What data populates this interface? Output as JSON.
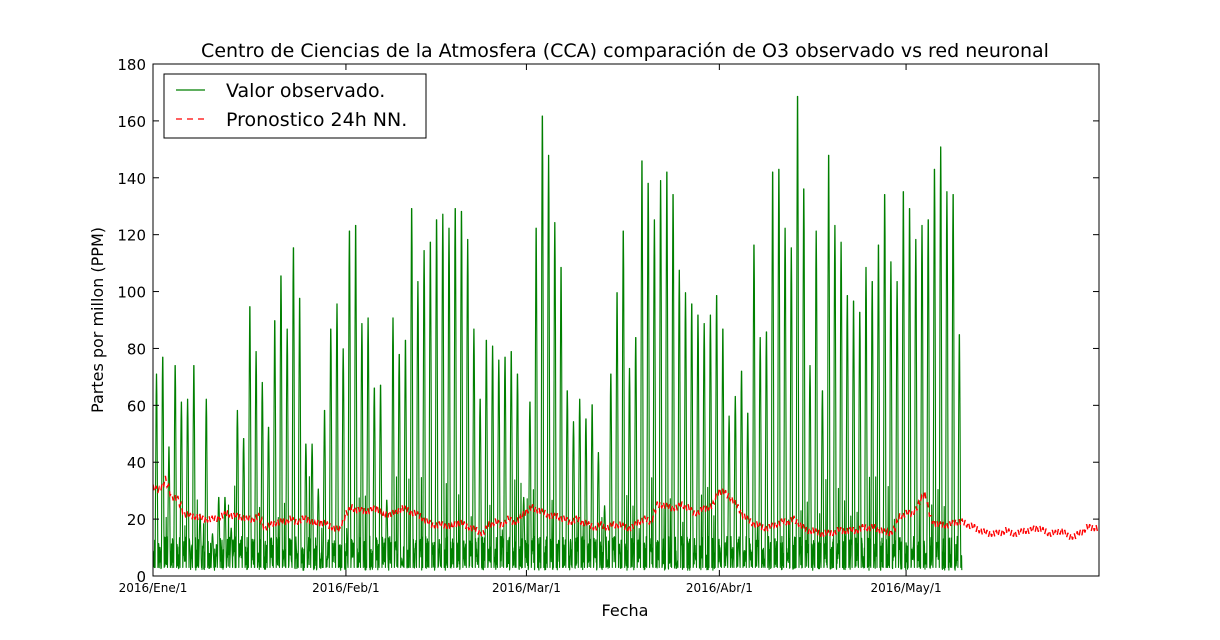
{
  "chart_data": {
    "type": "line",
    "title": "Centro de Ciencias de la Atmosfera (CCA) comparación de O3 observado vs red neuronal",
    "xlabel": "Fecha",
    "ylabel": "Partes por millon (PPM)",
    "ylim": [
      0,
      180
    ],
    "yticks": [
      0,
      20,
      40,
      60,
      80,
      100,
      120,
      140,
      160,
      180
    ],
    "xlim": [
      0,
      152
    ],
    "xticks": [
      {
        "label": "2016/Ene/1",
        "day": 0
      },
      {
        "label": "2016/Feb/1",
        "day": 31
      },
      {
        "label": "2016/Mar/1",
        "day": 60
      },
      {
        "label": "2016/Abr/1",
        "day": 91
      },
      {
        "label": "2016/May/1",
        "day": 121
      }
    ],
    "x_unit": "days since 2016/Ene/1",
    "legend_position": "top-left",
    "grid": false,
    "series": [
      {
        "name": "Valor observado.",
        "color": "#007f00",
        "style": "solid",
        "sampling": "daily peak values; hourly diurnal cycle with nightly minima near 2",
        "daily_peaks": [
          72,
          78,
          46,
          75,
          62,
          63,
          75,
          22,
          63,
          15,
          28,
          28,
          17,
          59,
          49,
          96,
          80,
          69,
          53,
          91,
          107,
          88,
          117,
          99,
          47,
          47,
          31,
          59,
          88,
          97,
          81,
          123,
          125,
          90,
          92,
          67,
          68,
          27,
          92,
          79,
          84,
          131,
          105,
          116,
          119,
          127,
          129,
          124,
          131,
          130,
          120,
          88,
          63,
          84,
          82,
          77,
          78,
          80,
          72,
          28,
          62,
          124,
          164,
          150,
          126,
          110,
          66,
          55,
          63,
          56,
          61,
          44,
          25,
          72,
          101,
          123,
          74,
          85,
          148,
          140,
          127,
          141,
          144,
          136,
          109,
          101,
          97,
          93,
          90,
          93,
          100,
          88,
          57,
          64,
          73,
          58,
          118,
          85,
          87,
          144,
          145,
          124,
          117,
          171,
          138,
          75,
          123,
          66,
          150,
          125,
          119,
          100,
          98,
          94,
          110,
          105,
          118,
          136,
          112,
          105,
          137,
          131,
          120,
          125,
          127,
          145,
          153,
          137,
          136,
          86
        ]
      },
      {
        "name": "Pronostico 24h NN.",
        "color": "#ff0000",
        "style": "dashed",
        "sampling": "daily values",
        "values": [
          31,
          30,
          34,
          28,
          27,
          22,
          21,
          21,
          20,
          20,
          20,
          21,
          22,
          21,
          21,
          20,
          20,
          21,
          17,
          18,
          19,
          19,
          20,
          19,
          20,
          20,
          18,
          19,
          18,
          17,
          16,
          22,
          24,
          23,
          23,
          23,
          24,
          21,
          22,
          22,
          24,
          23,
          22,
          21,
          19,
          18,
          18,
          18,
          17,
          19,
          18,
          17,
          16,
          15,
          18,
          19,
          18,
          20,
          19,
          20,
          23,
          24,
          23,
          22,
          21,
          21,
          20,
          19,
          20,
          19,
          18,
          17,
          18,
          17,
          18,
          18,
          17,
          17,
          19,
          20,
          19,
          25,
          25,
          24,
          24,
          25,
          24,
          22,
          23,
          24,
          25,
          30,
          29,
          27,
          24,
          21,
          19,
          18,
          17,
          17,
          18,
          19,
          19,
          20,
          18,
          16,
          16,
          15,
          15,
          15,
          16,
          16,
          16,
          16,
          17,
          17,
          17,
          16,
          15,
          16,
          21,
          22,
          22,
          25,
          29,
          20,
          18,
          18,
          18,
          19,
          19,
          18,
          17,
          16,
          15,
          15,
          15,
          16,
          15,
          15,
          16,
          16,
          17,
          16,
          15,
          15,
          16,
          14,
          14,
          15,
          17,
          17
        ]
      }
    ]
  }
}
